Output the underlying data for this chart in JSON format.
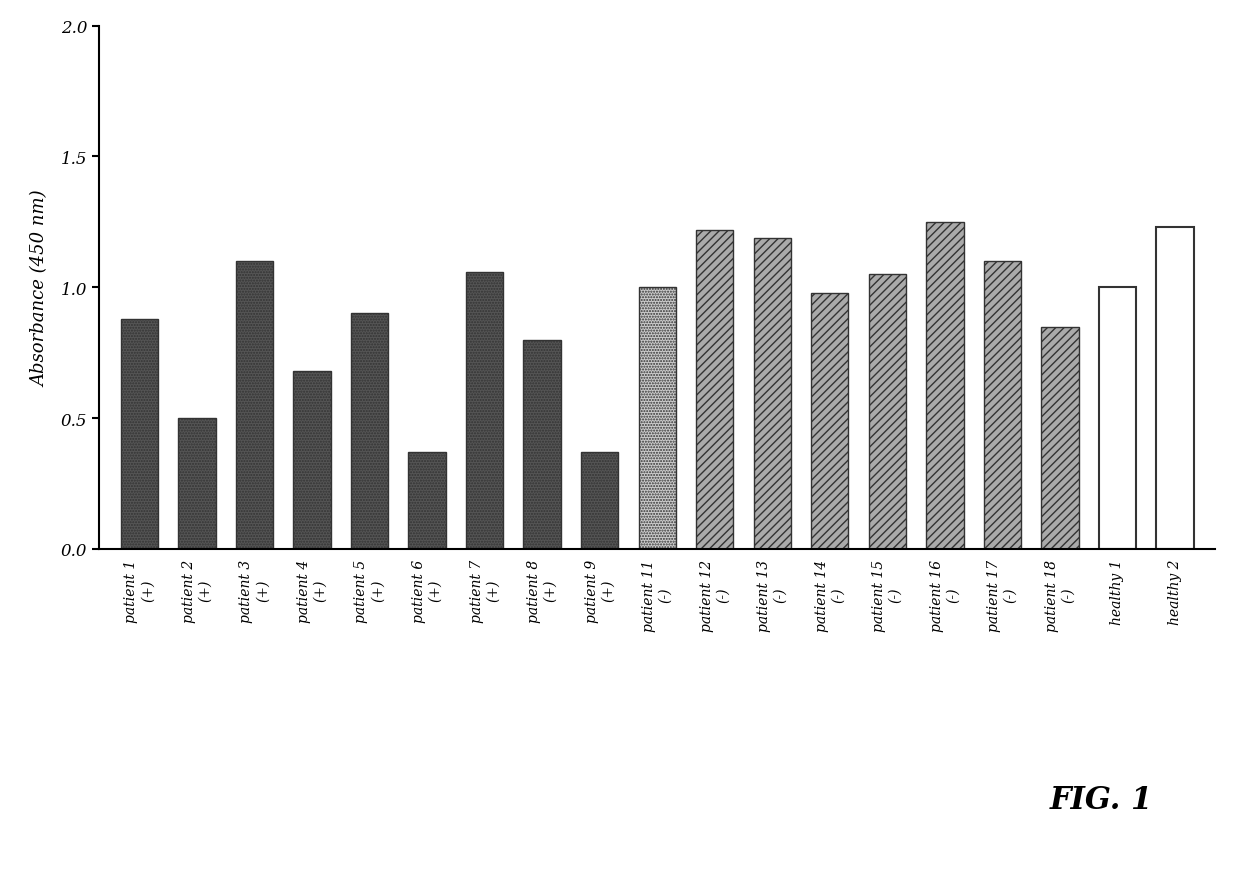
{
  "categories": [
    "patient 1\n(+)",
    "patient 2\n(+)",
    "patient 3\n(+)",
    "patient 4\n(+)",
    "patient 5\n(+)",
    "patient 6\n(+)",
    "patient 7\n(+)",
    "patient 8\n(+)",
    "patient 9\n(+)",
    "patient 11\n(-)",
    "patient 12\n(-)",
    "patient 13\n(-)",
    "patient 14\n(-)",
    "patient 15\n(-)",
    "patient 16\n(-)",
    "patient 17\n(-)",
    "patient 18\n(-)",
    "healthy 1",
    "healthy 2"
  ],
  "values": [
    0.88,
    0.5,
    1.1,
    0.68,
    0.9,
    0.37,
    1.06,
    0.8,
    0.37,
    1.0,
    1.22,
    1.19,
    0.98,
    1.05,
    1.25,
    1.1,
    0.85,
    1.0,
    1.23
  ],
  "bar_styles": [
    "dark",
    "dark",
    "dark",
    "dark",
    "dark",
    "dark",
    "dark",
    "dark",
    "dark",
    "light",
    "hatch",
    "hatch",
    "hatch",
    "hatch",
    "hatch",
    "hatch",
    "hatch",
    "white",
    "white"
  ],
  "ylabel": "Absorbance (450 nm)",
  "ylim": [
    0,
    2.0
  ],
  "yticks": [
    0.0,
    0.5,
    1.0,
    1.5,
    2.0
  ],
  "fig_label": "FIG. 1",
  "background_color": "#ffffff",
  "dark_color": "#555555",
  "light_color": "#cccccc",
  "hatch_color": "#aaaaaa",
  "white_color": "#ffffff",
  "edge_color": "#333333",
  "bar_width": 0.65
}
